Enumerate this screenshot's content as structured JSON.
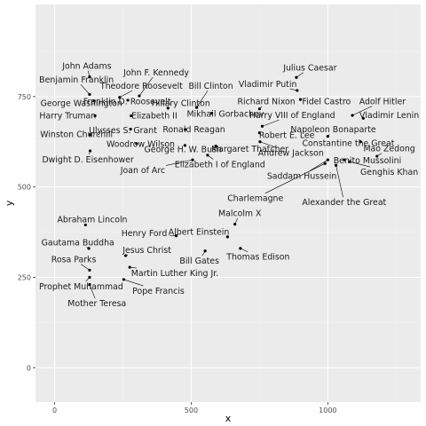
{
  "chart_data": {
    "type": "scatter",
    "title": "",
    "xlabel": "x",
    "ylabel": "y",
    "xlim": [
      -70,
      1340
    ],
    "ylim": [
      -95,
      1005
    ],
    "x_ticks": [
      0,
      500,
      1000
    ],
    "y_ticks": [
      0,
      250,
      500,
      750
    ],
    "x_tick_labels": [
      "0",
      "500",
      "1000"
    ],
    "y_tick_labels": [
      "0",
      "250",
      "500",
      "750"
    ],
    "grid": true,
    "legend": "none",
    "colors": {
      "panel": "#ebebeb",
      "grid_major": "#ffffff",
      "grid_minor": "#f4f4f4",
      "point": "#000000",
      "text": "#1a1a1a",
      "tick_text": "#4d4d4d"
    },
    "points": [
      {
        "name": "John Adams",
        "x": 128,
        "y": 805,
        "lx": 118,
        "ly": 835
      },
      {
        "name": "John F. Kennedy",
        "x": 310,
        "y": 752,
        "lx": 372,
        "ly": 817
      },
      {
        "name": "Julius Caesar",
        "x": 885,
        "y": 803,
        "lx": 935,
        "ly": 830
      },
      {
        "name": "Benjamin Franklin",
        "x": 128,
        "y": 756,
        "lx": 80,
        "ly": 797
      },
      {
        "name": "Theodore Roosevelt",
        "x": 238,
        "y": 748,
        "lx": 318,
        "ly": 780
      },
      {
        "name": "Bill Clinton",
        "x": 520,
        "y": 720,
        "lx": 572,
        "ly": 780
      },
      {
        "name": "Vladimir Putin",
        "x": 888,
        "y": 767,
        "lx": 780,
        "ly": 785
      },
      {
        "name": "George Washington",
        "x": 145,
        "y": 738,
        "lx": 98,
        "ly": 732
      },
      {
        "name": "Franklin D. Roosevelt",
        "x": 268,
        "y": 740,
        "lx": 265,
        "ly": 737
      },
      {
        "name": "Hillary Clinton",
        "x": 415,
        "y": 718,
        "lx": 462,
        "ly": 732
      },
      {
        "name": "Richard Nixon",
        "x": 750,
        "y": 716,
        "lx": 775,
        "ly": 737
      },
      {
        "name": "Fidel Castro",
        "x": 900,
        "y": 742,
        "lx": 995,
        "ly": 737
      },
      {
        "name": "Adolf Hitler",
        "x": 1090,
        "y": 698,
        "lx": 1200,
        "ly": 737
      },
      {
        "name": "Mikhail Gorbachev",
        "x": 575,
        "y": 704,
        "lx": 625,
        "ly": 703
      },
      {
        "name": "Harry VIII of England",
        "x": 760,
        "y": 668,
        "lx": 870,
        "ly": 699
      },
      {
        "name": "Harry Truman",
        "x": 148,
        "y": 697,
        "lx": 48,
        "ly": 697
      },
      {
        "name": "Elizabeth II",
        "x": 280,
        "y": 697,
        "lx": 365,
        "ly": 697
      },
      {
        "name": "Vladimir Lenin",
        "x": 1130,
        "y": 690,
        "lx": 1225,
        "ly": 699
      },
      {
        "name": "Napoleon Bonaparte",
        "x": 1000,
        "y": 640,
        "lx": 1020,
        "ly": 659
      },
      {
        "name": "Ulysses S. Grant",
        "x": 278,
        "y": 660,
        "lx": 250,
        "ly": 657
      },
      {
        "name": "Ronald Reagan",
        "x": 478,
        "y": 659,
        "lx": 510,
        "ly": 659
      },
      {
        "name": "Robert E. Lee",
        "x": 750,
        "y": 650,
        "lx": 850,
        "ly": 643
      },
      {
        "name": "Winston Churchill",
        "x": 130,
        "y": 645,
        "lx": 80,
        "ly": 646
      },
      {
        "name": "Constantine the Great",
        "x": 1120,
        "y": 625,
        "lx": 1075,
        "ly": 622
      },
      {
        "name": "Woodrow Wilson",
        "x": 300,
        "y": 620,
        "lx": 315,
        "ly": 619
      },
      {
        "name": "Margaret Thatcher",
        "x": 590,
        "y": 613,
        "lx": 715,
        "ly": 606
      },
      {
        "name": "Mao Zedong",
        "x": 1180,
        "y": 585,
        "lx": 1225,
        "ly": 607
      },
      {
        "name": "George H. W. Bush",
        "x": 477,
        "y": 615,
        "lx": 470,
        "ly": 604
      },
      {
        "name": "Andrew Jackson",
        "x": 752,
        "y": 625,
        "lx": 865,
        "ly": 595
      },
      {
        "name": "Benito Mussolini",
        "x": 1060,
        "y": 575,
        "lx": 1145,
        "ly": 574
      },
      {
        "name": "Dwight D. Eisenhower",
        "x": 130,
        "y": 600,
        "lx": 122,
        "ly": 576
      },
      {
        "name": "Elizabeth I of England",
        "x": 560,
        "y": 588,
        "lx": 605,
        "ly": 563
      },
      {
        "name": "Joan of Arc",
        "x": 505,
        "y": 575,
        "lx": 323,
        "ly": 546
      },
      {
        "name": "Genghis Khan",
        "x": 1080,
        "y": 570,
        "lx": 1225,
        "ly": 542
      },
      {
        "name": "Saddam Hussein",
        "x": 1000,
        "y": 575,
        "lx": 905,
        "ly": 531
      },
      {
        "name": "Charlemagne",
        "x": 990,
        "y": 565,
        "lx": 735,
        "ly": 469
      },
      {
        "name": "Alexander the Great",
        "x": 1030,
        "y": 560,
        "lx": 1060,
        "ly": 458
      },
      {
        "name": "Malcolm X",
        "x": 660,
        "y": 397,
        "lx": 678,
        "ly": 427
      },
      {
        "name": "Abraham Lincoln",
        "x": 113,
        "y": 395,
        "lx": 138,
        "ly": 410
      },
      {
        "name": "Albert Einstein",
        "x": 633,
        "y": 362,
        "lx": 528,
        "ly": 376
      },
      {
        "name": "Henry Ford",
        "x": 445,
        "y": 365,
        "lx": 328,
        "ly": 372
      },
      {
        "name": "Gautama Buddha",
        "x": 125,
        "y": 330,
        "lx": 85,
        "ly": 347
      },
      {
        "name": "Jesus Christ",
        "x": 260,
        "y": 310,
        "lx": 338,
        "ly": 325
      },
      {
        "name": "Bill Gates",
        "x": 551,
        "y": 323,
        "lx": 530,
        "ly": 296
      },
      {
        "name": "Thomas Edison",
        "x": 680,
        "y": 330,
        "lx": 745,
        "ly": 307
      },
      {
        "name": "Rosa Parks",
        "x": 128,
        "y": 270,
        "lx": 70,
        "ly": 300
      },
      {
        "name": "Martin Luther King Jr.",
        "x": 275,
        "y": 278,
        "lx": 440,
        "ly": 262
      },
      {
        "name": "Prophet Muhammad",
        "x": 128,
        "y": 250,
        "lx": 97,
        "ly": 225
      },
      {
        "name": "Pope Francis",
        "x": 253,
        "y": 244,
        "lx": 380,
        "ly": 213
      },
      {
        "name": "Mother Teresa",
        "x": 128,
        "y": 230,
        "lx": 155,
        "ly": 178
      }
    ]
  }
}
